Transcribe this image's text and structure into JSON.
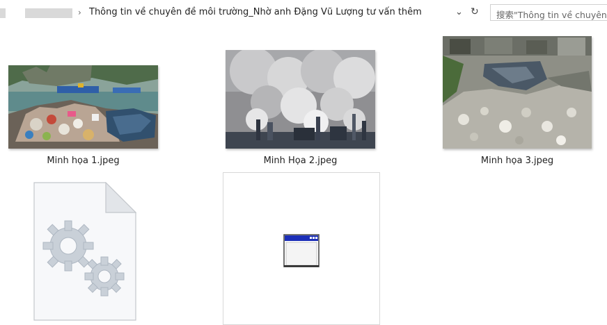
{
  "address": {
    "path": "Thông tin về chuyên đề môi trường_Nhờ anh Đặng Vũ Lượng tư vấn thêm",
    "separator": "›"
  },
  "search": {
    "placeholder": "搜索\"Thông tin về chuyên"
  },
  "files": [
    {
      "name": "Minh họa 1.jpeg",
      "kind": "image",
      "subject": "plastic waste on shore"
    },
    {
      "name": "Minh Họa 2.jpeg",
      "kind": "image",
      "subject": "factory smoke"
    },
    {
      "name": "Minh họa 3.jpeg",
      "kind": "image",
      "subject": "polluted canal with garbage"
    },
    {
      "name": "",
      "kind": "config-file",
      "icon": "gear-document-icon"
    },
    {
      "name": "",
      "kind": "executable",
      "icon": "application-window-icon"
    }
  ]
}
